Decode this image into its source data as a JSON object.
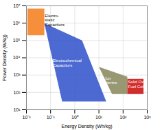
{
  "chart_data": {
    "type": "polygon",
    "xlabel": "Energy Density (Wh/kg)",
    "ylabel": "Power Density (W/kg)",
    "log": true,
    "grid": true,
    "xlim": [
      0.01,
      1000
    ],
    "ylim": [
      10,
      10000000
    ],
    "xticks": [
      {
        "value": 0.01,
        "label": "10⁻²"
      },
      {
        "value": 0.1,
        "label": "10⁻¹"
      },
      {
        "value": 1,
        "label": "10⁰"
      },
      {
        "value": 10,
        "label": "10¹"
      },
      {
        "value": 100,
        "label": "10²"
      },
      {
        "value": 1000,
        "label": "10³"
      }
    ],
    "yticks": [
      {
        "value": 10,
        "label": "10¹"
      },
      {
        "value": 100,
        "label": "10²"
      },
      {
        "value": 1000,
        "label": "10³"
      },
      {
        "value": 10000,
        "label": "10⁴"
      },
      {
        "value": 100000,
        "label": "10⁵"
      },
      {
        "value": 1000000,
        "label": "10⁶"
      },
      {
        "value": 10000000,
        "label": "10⁷"
      }
    ],
    "series": [
      {
        "color": "#3355cc",
        "x": [
          0.055,
          2.0,
          20.0,
          0.3
        ],
        "y": [
          1000000,
          100000,
          30,
          30
        ]
      },
      {
        "color": "#f58020",
        "x": [
          0.011,
          0.055,
          0.055,
          0.011
        ],
        "y": [
          200000,
          200000,
          7000000,
          7000000
        ]
      },
      {
        "color": "#8a8a60",
        "x": [
          10,
          150,
          150,
          35
        ],
        "y": [
          3000,
          800,
          80,
          80
        ]
      },
      {
        "color": "#cc1111",
        "x": [
          150,
          700,
          700,
          150
        ],
        "y": [
          600,
          600,
          80,
          80
        ]
      }
    ],
    "annotations": [
      {
        "text": "Electro-\nstatic\nCapacitors",
        "x": 0.058,
        "y": 1500000,
        "color": "#111111"
      },
      {
        "text": "Electrochemical\nCapacitors",
        "x": 0.12,
        "y": 5000,
        "color": "#ffffff"
      },
      {
        "text": "Li Ion\nBatteries",
        "x": 12,
        "y": 500,
        "color": "#ffffff"
      },
      {
        "text": "Solid Oxide\nFuel Cells",
        "x": 160,
        "y": 300,
        "color": "#ffffff"
      }
    ]
  }
}
